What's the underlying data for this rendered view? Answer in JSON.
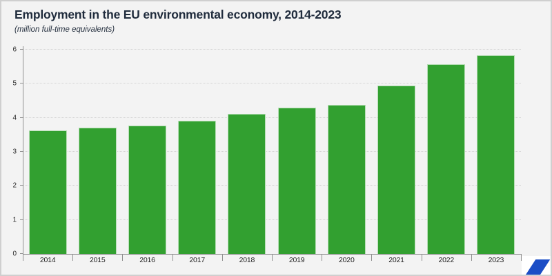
{
  "header": {
    "title": "Employment in the EU environmental economy, 2014-2023",
    "subtitle": "(million full-time equivalents)"
  },
  "chart_data": {
    "type": "bar",
    "title": "Employment in the EU environmental economy, 2014-2023",
    "subtitle": "(million full-time equivalents)",
    "categories": [
      "2014",
      "2015",
      "2016",
      "2017",
      "2018",
      "2019",
      "2020",
      "2021",
      "2022",
      "2023"
    ],
    "values": [
      3.63,
      3.7,
      3.77,
      3.92,
      4.11,
      4.3,
      4.37,
      4.95,
      5.58,
      5.83
    ],
    "xlabel": "",
    "ylabel": "",
    "ylim": [
      0,
      6
    ],
    "yticks": [
      0,
      1,
      2,
      3,
      4,
      5,
      6
    ],
    "grid": "horizontal-dotted",
    "legend": "none",
    "bar_color": "#32a030",
    "background_color": "#f3f3f3",
    "title_color": "#1f2b3c"
  },
  "footer": {
    "logo_name": "eurostat-blue-parallelogram",
    "logo_color": "#1b4dc6"
  }
}
